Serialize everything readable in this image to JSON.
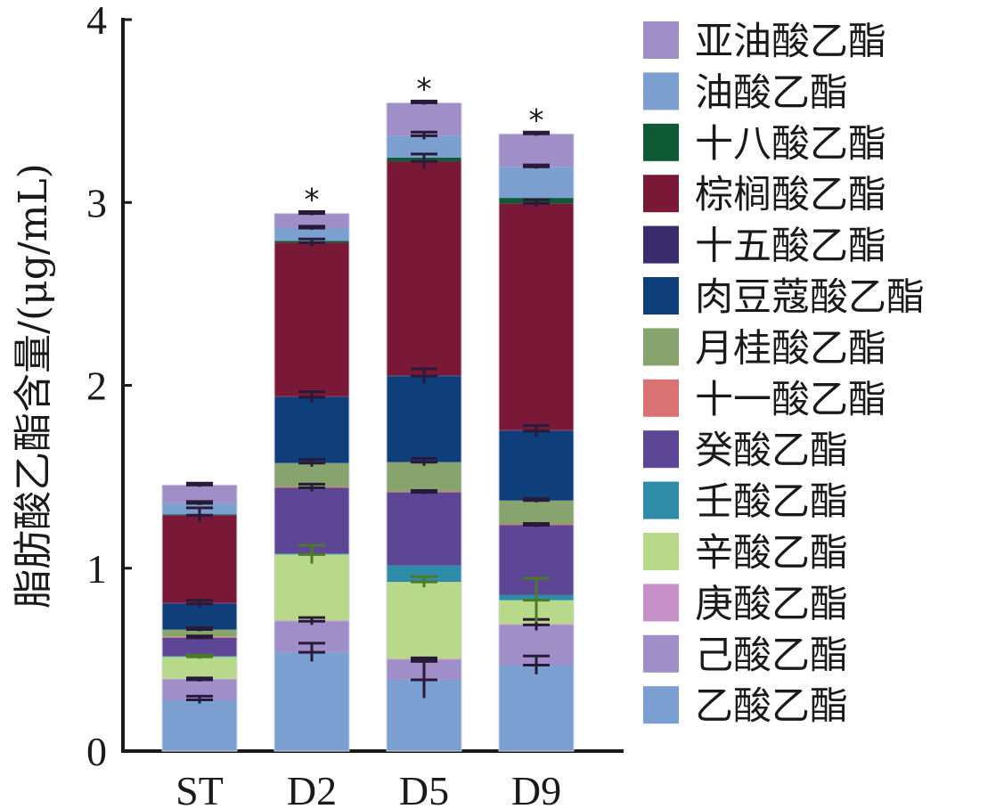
{
  "chart_data": {
    "type": "bar",
    "stacked": true,
    "title": "",
    "xlabel": "",
    "ylabel": "脂肪酸乙酯含量/(μg/mL)",
    "ylim": [
      0,
      4
    ],
    "yticks": [
      "0",
      "1",
      "2",
      "3",
      "4"
    ],
    "categories": [
      "ST",
      "D2",
      "D5",
      "D9"
    ],
    "significance": [
      "",
      "*",
      "*",
      "*"
    ],
    "legend_position": "right",
    "series": [
      {
        "name": "乙酸乙酯",
        "color": "#7b9fd0",
        "values": [
          0.28,
          0.54,
          0.39,
          0.47
        ],
        "errors": [
          0.02,
          0.05,
          0.1,
          0.05
        ]
      },
      {
        "name": "己酸乙酯",
        "color": "#a08ec8",
        "values": [
          0.11,
          0.17,
          0.11,
          0.22
        ],
        "errors": [
          0.01,
          0.02,
          0.01,
          0.03
        ]
      },
      {
        "name": "庚酸乙酯",
        "color": "#c890c8",
        "values": [
          0.005,
          0.005,
          0.005,
          0.005
        ],
        "errors": [
          0,
          0,
          0,
          0
        ]
      },
      {
        "name": "辛酸乙酯",
        "color": "#b8d98a",
        "values": [
          0.12,
          0.36,
          0.42,
          0.13
        ],
        "errors": [
          0.01,
          0.05,
          0.03,
          0.12
        ]
      },
      {
        "name": "壬酸乙酯",
        "color": "#2e8ca8",
        "values": [
          0.005,
          0.005,
          0.09,
          0.03
        ],
        "errors": [
          0,
          0,
          0,
          0
        ]
      },
      {
        "name": "癸酸乙酯",
        "color": "#5e4696",
        "values": [
          0.1,
          0.36,
          0.4,
          0.38
        ],
        "errors": [
          0.01,
          0.02,
          0.01,
          0.01
        ]
      },
      {
        "name": "十一酸乙酯",
        "color": "#d97272",
        "values": [
          0.005,
          0.005,
          0.005,
          0.005
        ],
        "errors": [
          0,
          0,
          0,
          0
        ]
      },
      {
        "name": "月桂酸乙酯",
        "color": "#88a46e",
        "values": [
          0.04,
          0.13,
          0.16,
          0.13
        ],
        "errors": [
          0.01,
          0.02,
          0.02,
          0.01
        ]
      },
      {
        "name": "肉豆蔻酸乙酯",
        "color": "#0f3f7a",
        "values": [
          0.14,
          0.36,
          0.47,
          0.38
        ],
        "errors": [
          0.02,
          0.03,
          0.04,
          0.03
        ]
      },
      {
        "name": "十五酸乙酯",
        "color": "#3a2b6c",
        "values": [
          0.005,
          0.005,
          0.005,
          0.005
        ],
        "errors": [
          0,
          0,
          0,
          0
        ]
      },
      {
        "name": "棕榈酸乙酯",
        "color": "#7a1838",
        "values": [
          0.48,
          0.84,
          1.17,
          1.24
        ],
        "errors": [
          0.04,
          0.02,
          0.04,
          0.02
        ]
      },
      {
        "name": "十八酸乙酯",
        "color": "#0e5a34",
        "values": [
          0.005,
          0.01,
          0.02,
          0.03
        ],
        "errors": [
          0,
          0,
          0,
          0
        ]
      },
      {
        "name": "油酸乙酯",
        "color": "#7ba0d0",
        "values": [
          0.06,
          0.07,
          0.12,
          0.17
        ],
        "errors": [
          0.01,
          0.01,
          0.02,
          0.01
        ]
      },
      {
        "name": "亚油酸乙酯",
        "color": "#a08ec8",
        "values": [
          0.1,
          0.08,
          0.18,
          0.18
        ],
        "errors": [
          0.01,
          0.01,
          0.01,
          0.01
        ]
      }
    ]
  }
}
